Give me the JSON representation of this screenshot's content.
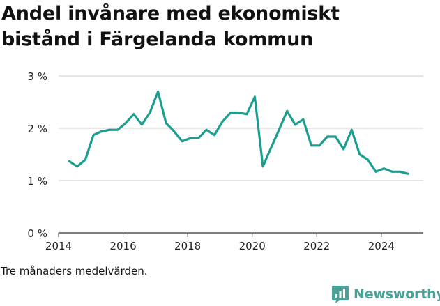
{
  "title_lines": [
    "Andel invånare med ekonomiskt",
    "bistånd i Färgelanda kommun"
  ],
  "footnote": "Tre månaders medelvärden.",
  "brand": {
    "name": "Newsworthy",
    "icon": "bar-chart-logo-icon",
    "color": "#4aa197"
  },
  "chart_data": {
    "type": "line",
    "title": "Andel invånare med ekonomiskt bistånd i Färgelanda kommun",
    "xlabel": "",
    "ylabel": "",
    "xlim": [
      2014,
      2025.3
    ],
    "ylim": [
      0,
      3
    ],
    "x_ticks": [
      2014,
      2016,
      2018,
      2020,
      2022,
      2024
    ],
    "y_ticks": [
      0,
      1,
      2,
      3
    ],
    "y_tick_labels": [
      "0 %",
      "1 %",
      "2 %",
      "3 %"
    ],
    "grid": "horizontal",
    "line_color": "#1a9e8f",
    "series": [
      {
        "x": [
          2014.33,
          2014.58,
          2014.83,
          2015.08,
          2015.33,
          2015.58,
          2015.83,
          2016.08,
          2016.33,
          2016.58,
          2016.83,
          2017.08,
          2017.33,
          2017.58,
          2017.83,
          2018.08,
          2018.33,
          2018.58,
          2018.83,
          2019.08,
          2019.33,
          2019.58,
          2019.83,
          2020.08,
          2020.33,
          2020.58,
          2020.83,
          2021.08,
          2021.33,
          2021.58,
          2021.83,
          2022.08,
          2022.33,
          2022.58,
          2022.83,
          2023.08,
          2023.33,
          2023.58,
          2023.83,
          2024.08,
          2024.33,
          2024.58,
          2024.83
        ],
        "values": [
          1.37,
          1.27,
          1.4,
          1.87,
          1.94,
          1.97,
          1.97,
          2.1,
          2.27,
          2.07,
          2.3,
          2.7,
          2.1,
          1.94,
          1.75,
          1.81,
          1.81,
          1.97,
          1.87,
          2.13,
          2.3,
          2.3,
          2.27,
          2.6,
          1.27,
          1.62,
          1.97,
          2.33,
          2.07,
          2.17,
          1.67,
          1.67,
          1.84,
          1.84,
          1.6,
          1.97,
          1.5,
          1.4,
          1.17,
          1.23,
          1.17,
          1.17,
          1.13
        ]
      }
    ]
  }
}
